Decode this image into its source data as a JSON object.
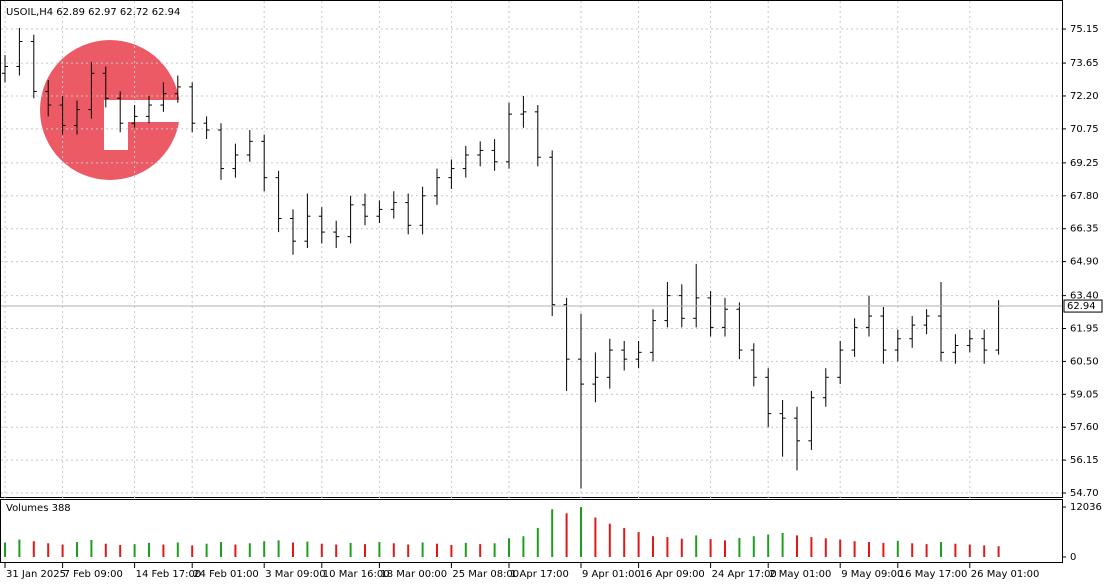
{
  "chart_data": {
    "type": "ohlc",
    "title": "USOIL,H4  62.89 62.97 62.72 62.94",
    "categories": [
      "31 Jan 2025",
      null,
      null,
      null,
      "7 Feb 09:00",
      null,
      null,
      null,
      null,
      "14 Feb 17:00",
      null,
      null,
      null,
      "24 Feb 01:00",
      null,
      null,
      null,
      null,
      "3 Mar 09:00",
      null,
      null,
      null,
      "10 Mar 16:00",
      null,
      null,
      null,
      "18 Mar 00:00",
      null,
      null,
      null,
      null,
      "25 Mar 08:00",
      null,
      null,
      null,
      "1 Apr 17:00",
      null,
      null,
      null,
      null,
      "9 Apr 01:00",
      null,
      null,
      null,
      "16 Apr 09:00",
      null,
      null,
      null,
      null,
      "24 Apr 17:00",
      null,
      null,
      null,
      "2 May 01:00",
      null,
      null,
      null,
      null,
      "9 May 09:00",
      null,
      null,
      null,
      "16 May 17:00",
      null,
      null,
      null,
      null,
      "26 May 01:00",
      null,
      null
    ],
    "open": [
      73.2,
      73.5,
      74.6,
      72.4,
      71.8,
      70.9,
      71.6,
      73.2,
      72.1,
      71.0,
      71.3,
      71.8,
      72.3,
      72.6,
      71.0,
      70.7,
      69.0,
      69.6,
      70.2,
      68.6,
      66.8,
      65.8,
      66.9,
      66.2,
      66.0,
      67.4,
      66.9,
      67.2,
      67.5,
      66.5,
      67.8,
      68.6,
      69.0,
      69.6,
      69.8,
      69.3,
      71.4,
      71.5,
      69.5,
      63.0,
      60.6,
      59.5,
      59.8,
      61.0,
      60.6,
      60.9,
      62.3,
      63.4,
      62.4,
      63.3,
      62.0,
      62.8,
      61.0,
      59.8,
      58.2,
      58.0,
      57.0,
      58.9,
      59.8,
      61.0,
      62.0,
      62.5,
      61.0,
      61.5,
      62.1,
      62.5,
      60.9,
      61.2,
      61.5,
      61.0
    ],
    "high": [
      74.0,
      75.2,
      74.9,
      72.9,
      72.2,
      72.0,
      73.7,
      73.5,
      72.4,
      71.8,
      72.2,
      72.8,
      73.1,
      72.8,
      71.3,
      71.0,
      70.1,
      70.7,
      70.5,
      68.9,
      67.2,
      67.9,
      67.3,
      66.7,
      67.8,
      67.9,
      67.6,
      68.0,
      67.9,
      68.2,
      69.0,
      69.4,
      70.0,
      70.2,
      70.3,
      71.9,
      72.2,
      71.8,
      69.8,
      63.3,
      62.6,
      60.9,
      61.5,
      61.4,
      61.4,
      62.8,
      64.0,
      63.9,
      64.8,
      63.6,
      63.3,
      63.1,
      61.3,
      60.2,
      58.8,
      58.5,
      59.2,
      60.2,
      61.4,
      62.4,
      63.4,
      62.9,
      61.9,
      62.5,
      62.8,
      64.0,
      61.7,
      61.9,
      61.9,
      63.2
    ],
    "low": [
      72.8,
      73.1,
      72.1,
      71.3,
      70.5,
      70.5,
      71.2,
      71.7,
      70.6,
      70.8,
      71.0,
      71.5,
      71.9,
      70.6,
      70.3,
      68.5,
      68.6,
      69.3,
      68.0,
      66.2,
      65.2,
      65.5,
      65.7,
      65.5,
      65.7,
      66.5,
      66.6,
      66.8,
      66.1,
      66.1,
      67.4,
      68.1,
      68.6,
      69.1,
      68.9,
      69.0,
      70.8,
      69.1,
      62.5,
      59.2,
      54.9,
      58.7,
      59.3,
      60.1,
      60.2,
      60.5,
      62.0,
      62.0,
      62.0,
      61.6,
      61.6,
      60.6,
      59.4,
      57.6,
      56.3,
      55.7,
      56.6,
      58.5,
      59.5,
      60.7,
      61.6,
      60.4,
      60.5,
      61.1,
      61.7,
      60.5,
      60.4,
      60.9,
      60.4,
      60.8
    ],
    "close": [
      73.5,
      74.6,
      72.4,
      71.8,
      70.9,
      71.6,
      73.2,
      72.1,
      71.0,
      71.3,
      71.8,
      72.3,
      72.6,
      71.0,
      70.7,
      69.0,
      69.6,
      70.2,
      68.6,
      66.8,
      65.8,
      66.9,
      66.2,
      66.0,
      67.4,
      66.9,
      67.2,
      67.5,
      66.5,
      67.8,
      68.6,
      69.0,
      69.6,
      69.8,
      69.3,
      71.4,
      71.5,
      69.5,
      63.0,
      60.6,
      59.5,
      59.8,
      61.0,
      60.6,
      60.9,
      62.3,
      63.4,
      62.4,
      63.3,
      62.0,
      62.8,
      61.0,
      59.8,
      58.2,
      58.0,
      57.0,
      58.9,
      59.8,
      61.0,
      62.0,
      62.5,
      61.0,
      61.5,
      62.1,
      62.5,
      60.9,
      61.2,
      61.5,
      61.0,
      62.94
    ],
    "color": "#000000",
    "ylim": [
      54.48,
      76.43
    ],
    "yticks": [
      75.15,
      73.65,
      {
        "value": 72.2,
        "label": "72.20"
      },
      70.75,
      69.25,
      {
        "value": 67.8,
        "label": "67.80"
      },
      66.35,
      {
        "value": 64.9,
        "label": "64.90"
      },
      {
        "value": 63.4,
        "label": "63.40"
      },
      61.95,
      {
        "value": 60.5,
        "label": "60.50"
      },
      59.05,
      {
        "value": 57.6,
        "label": "57.60"
      },
      56.15,
      {
        "value": 54.7,
        "label": "54.70"
      }
    ],
    "grid": true,
    "volume": {
      "label": "Volumes 388",
      "values": [
        3500,
        4200,
        3800,
        3300,
        3000,
        3600,
        4100,
        3200,
        2900,
        3100,
        3400,
        3000,
        3500,
        2800,
        3200,
        3600,
        3000,
        3300,
        3800,
        4000,
        3500,
        3700,
        3200,
        3000,
        3400,
        3100,
        3600,
        3300,
        3000,
        3500,
        3200,
        2900,
        3400,
        3100,
        3300,
        4500,
        5000,
        7000,
        11500,
        10500,
        12036,
        9500,
        8000,
        7000,
        6000,
        5000,
        4800,
        4400,
        5200,
        4300,
        4000,
        4600,
        5000,
        5400,
        5800,
        5200,
        4800,
        4500,
        4200,
        3800,
        3600,
        3400,
        3900,
        3300,
        3100,
        3600,
        3200,
        3000,
        2800,
        2600
      ],
      "ylim": [
        0,
        12036
      ],
      "yticks": [
        0,
        12036
      ],
      "up_color": "#1e9e1e",
      "down_color": "#dd1a1a"
    }
  }
}
